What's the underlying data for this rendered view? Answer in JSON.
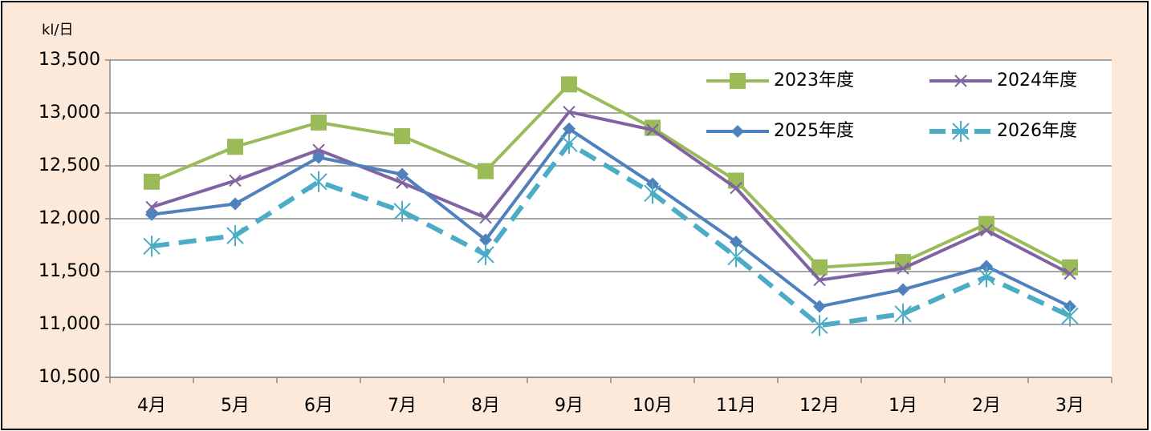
{
  "chart_data": {
    "type": "line",
    "y_unit_label": "kl/日",
    "categories": [
      "4月",
      "5月",
      "6月",
      "7月",
      "8月",
      "9月",
      "10月",
      "11月",
      "12月",
      "1月",
      "2月",
      "3月"
    ],
    "series": [
      {
        "name": "2023年度",
        "color": "#9bbb59",
        "marker": "square",
        "dashed": false,
        "values": [
          12350,
          12680,
          12910,
          12780,
          12450,
          13270,
          12860,
          12360,
          11540,
          11590,
          11950,
          11540
        ]
      },
      {
        "name": "2024年度",
        "color": "#8064a2",
        "marker": "x",
        "dashed": false,
        "values": [
          12110,
          12360,
          12650,
          12340,
          12010,
          13010,
          12840,
          12290,
          11420,
          11530,
          11890,
          11480
        ]
      },
      {
        "name": "2025年度",
        "color": "#4f81bd",
        "marker": "diamond",
        "dashed": false,
        "values": [
          12040,
          12140,
          12580,
          12420,
          11800,
          12850,
          12330,
          11780,
          11170,
          11330,
          11550,
          11170
        ]
      },
      {
        "name": "2026年度",
        "color": "#4bacc6",
        "marker": "star",
        "dashed": true,
        "values": [
          11740,
          11840,
          12350,
          12070,
          11660,
          12710,
          12240,
          11640,
          10990,
          11100,
          11450,
          11080
        ]
      }
    ],
    "ylim": [
      10500,
      13500
    ],
    "yticks": [
      {
        "value": 10500,
        "label": "10,500"
      },
      {
        "value": 11000,
        "label": "11,000"
      },
      {
        "value": 11500,
        "label": "11,500"
      },
      {
        "value": 12000,
        "label": "12,000"
      },
      {
        "value": 12500,
        "label": "12,500"
      },
      {
        "value": 13000,
        "label": "13,000"
      },
      {
        "value": 13500,
        "label": "13,500"
      }
    ],
    "grid": true,
    "legend": "upper right"
  }
}
